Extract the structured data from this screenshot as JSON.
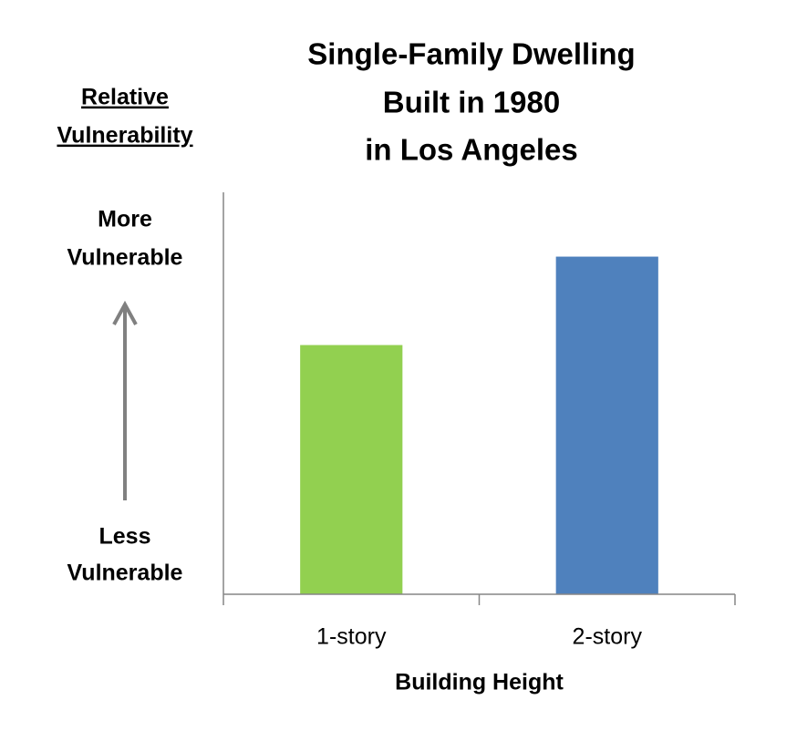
{
  "chart_data": {
    "type": "bar",
    "title": [
      "Single-Family Dwelling",
      "Built in 1980",
      "in Los Angeles"
    ],
    "y_label": [
      "Relative",
      "Vulnerability"
    ],
    "annotations": {
      "top": [
        "More",
        "Vulnerable"
      ],
      "bottom": [
        "Less",
        "Vulnerable"
      ]
    },
    "x_label": "Building Height",
    "categories": [
      "1-story",
      "2-story"
    ],
    "values": [
      62,
      84
    ],
    "colors": [
      "#92d050",
      "#4f81bd"
    ],
    "ylim": [
      0,
      100
    ]
  }
}
